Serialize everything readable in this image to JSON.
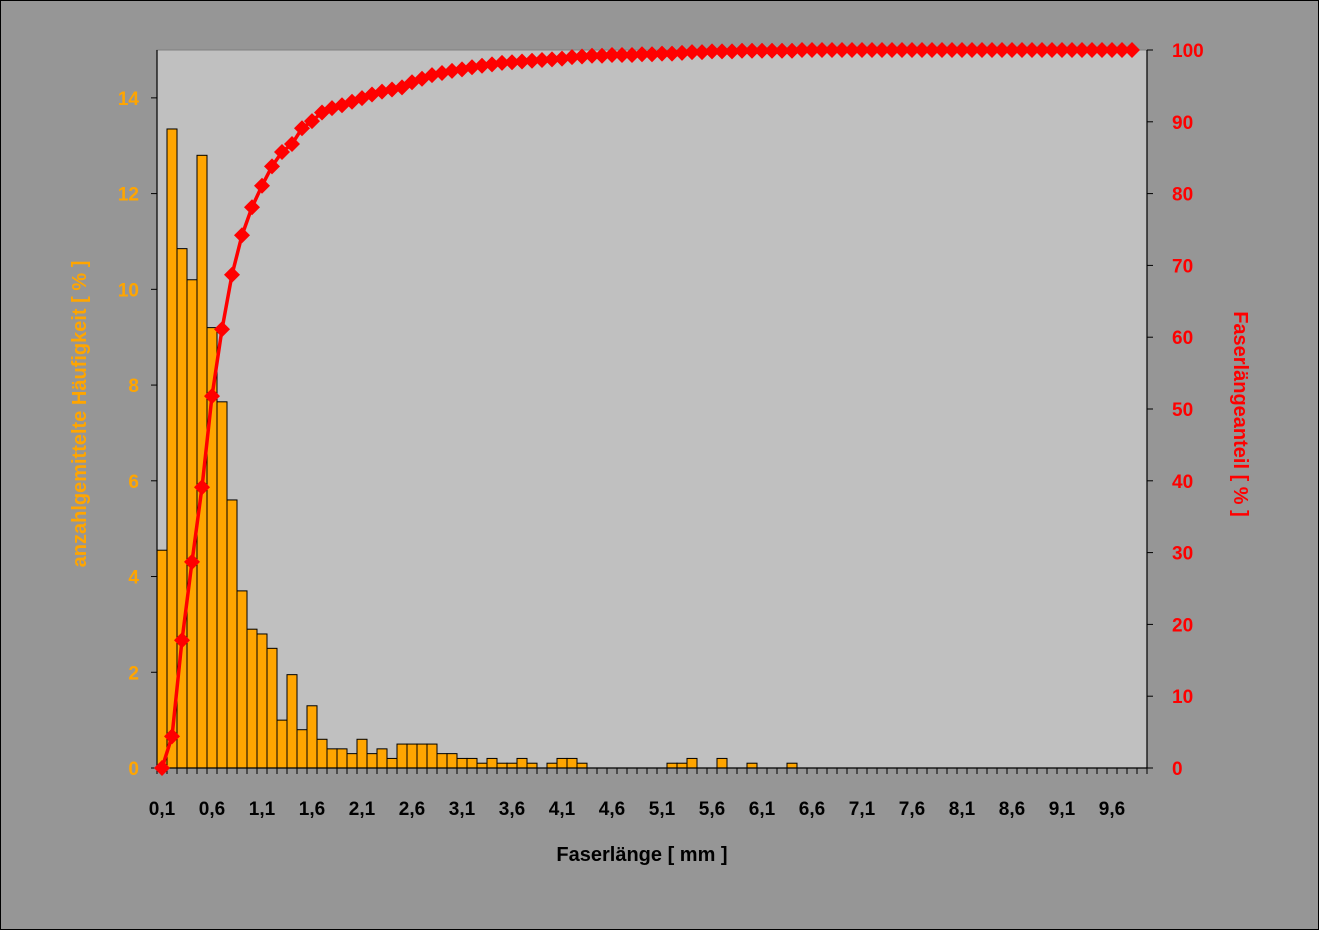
{
  "chart_data": {
    "type": "bar+line",
    "title": "",
    "xlabel": "Faserlänge [ mm ]",
    "ylabel_left": "anzahlgemittelte Häufigkeit [ % ]",
    "ylabel_right": "Faserlängeanteil [ % ]",
    "ylim_left": [
      0,
      15
    ],
    "ylim_right": [
      0,
      100
    ],
    "yticks_left": [
      "0",
      "2",
      "4",
      "6",
      "8",
      "10",
      "12",
      "14"
    ],
    "yticks_right": [
      "0",
      "10",
      "20",
      "30",
      "40",
      "50",
      "60",
      "70",
      "80",
      "90",
      "100"
    ],
    "x_tick_labels": [
      "0,1",
      "0,6",
      "1,1",
      "1,6",
      "2,1",
      "2,6",
      "3,1",
      "3,6",
      "4,1",
      "4,6",
      "5,1",
      "5,6",
      "6,1",
      "6,6",
      "7,1",
      "7,6",
      "8,1",
      "8,6",
      "9,1",
      "9,6"
    ],
    "x_first": 0.1,
    "x_step": 0.1,
    "grid": false,
    "legend": "none",
    "colors": {
      "bars": "#FFA500",
      "line": "#FF0000",
      "plot_background": "#C0C0C0",
      "page_background": "#969696",
      "left_axis_text": "#FFA500",
      "right_axis_text": "#FF0000"
    },
    "series": [
      {
        "name": "anzahlgemittelte Häufigkeit",
        "type": "bar",
        "axis": "left",
        "values": [
          4.55,
          13.35,
          10.85,
          10.2,
          12.8,
          9.2,
          7.65,
          5.6,
          3.7,
          2.9,
          2.8,
          2.5,
          1.0,
          1.95,
          0.8,
          1.3,
          0.6,
          0.4,
          0.4,
          0.3,
          0.6,
          0.3,
          0.4,
          0.2,
          0.5,
          0.5,
          0.5,
          0.5,
          0.3,
          0.3,
          0.2,
          0.2,
          0.1,
          0.2,
          0.1,
          0.1,
          0.2,
          0.1,
          0,
          0.1,
          0.2,
          0.2,
          0.1,
          0,
          0,
          0,
          0,
          0,
          0,
          0,
          0,
          0.1,
          0.1,
          0.2,
          0,
          0,
          0.2,
          0,
          0,
          0.1,
          0,
          0,
          0,
          0.1,
          0,
          0,
          0,
          0,
          0,
          0,
          0,
          0,
          0,
          0,
          0,
          0,
          0,
          0,
          0,
          0,
          0,
          0,
          0,
          0,
          0,
          0,
          0,
          0,
          0,
          0,
          0,
          0,
          0,
          0,
          0,
          0,
          0,
          0,
          0
        ]
      },
      {
        "name": "Faserlängeanteil",
        "type": "line",
        "axis": "right",
        "values": [
          0,
          4.4,
          17.8,
          28.7,
          39.1,
          51.8,
          61.1,
          68.7,
          74.2,
          78.1,
          81.1,
          83.8,
          85.8,
          86.9,
          89.1,
          90.1,
          91.3,
          91.9,
          92.3,
          92.8,
          93.3,
          93.8,
          94.2,
          94.5,
          94.8,
          95.5,
          96.0,
          96.5,
          96.8,
          97.1,
          97.3,
          97.6,
          97.8,
          98.0,
          98.2,
          98.3,
          98.4,
          98.5,
          98.6,
          98.7,
          98.8,
          99.0,
          99.1,
          99.2,
          99.2,
          99.3,
          99.3,
          99.3,
          99.4,
          99.4,
          99.5,
          99.5,
          99.6,
          99.7,
          99.7,
          99.8,
          99.8,
          99.8,
          99.9,
          99.9,
          99.9,
          99.9,
          99.9,
          99.9,
          100,
          100,
          100,
          100,
          100,
          100,
          100,
          100,
          100,
          100,
          100,
          100,
          100,
          100,
          100,
          100,
          100,
          100,
          100,
          100,
          100,
          100,
          100,
          100,
          100,
          100,
          100,
          100,
          100,
          100,
          100,
          100,
          100,
          100
        ]
      }
    ]
  }
}
